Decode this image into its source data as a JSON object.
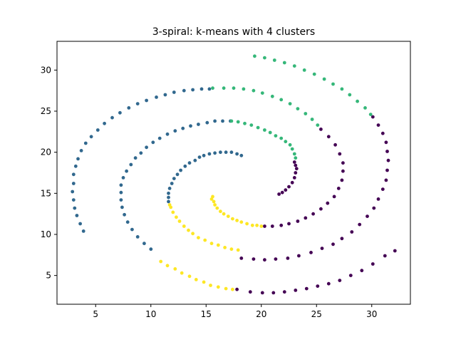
{
  "chart_data": {
    "type": "scatter",
    "title": "3-spiral: k-means with 4 clusters",
    "xlabel": "",
    "ylabel": "",
    "xlim": [
      1.5,
      33.5
    ],
    "ylim": [
      1.5,
      33.5
    ],
    "xticks": [
      5,
      10,
      15,
      20,
      25,
      30
    ],
    "yticks": [
      5,
      10,
      15,
      20,
      25,
      30
    ],
    "grid": false,
    "series": [
      {
        "color": "#440154",
        "points": [
          [
            21.6,
            14.9
          ],
          [
            21.9,
            15.1
          ],
          [
            22.2,
            15.4
          ],
          [
            22.5,
            15.8
          ],
          [
            22.8,
            16.3
          ],
          [
            23.0,
            16.9
          ],
          [
            23.1,
            17.5
          ],
          [
            23.2,
            18.0
          ],
          [
            23.1,
            18.4
          ],
          [
            23.0,
            18.8
          ],
          [
            20.3,
            11.0
          ],
          [
            21.0,
            11.0
          ],
          [
            21.8,
            11.1
          ],
          [
            22.5,
            11.3
          ],
          [
            23.3,
            11.6
          ],
          [
            24.0,
            12.0
          ],
          [
            24.7,
            12.5
          ],
          [
            25.4,
            13.1
          ],
          [
            26.0,
            13.8
          ],
          [
            26.6,
            14.6
          ],
          [
            27.0,
            15.6
          ],
          [
            27.3,
            16.6
          ],
          [
            27.4,
            17.7
          ],
          [
            27.4,
            18.7
          ],
          [
            27.1,
            19.8
          ],
          [
            26.7,
            20.9
          ],
          [
            26.1,
            21.9
          ],
          [
            25.4,
            22.8
          ],
          [
            18.2,
            7.1
          ],
          [
            19.3,
            7.0
          ],
          [
            20.3,
            6.9
          ],
          [
            21.3,
            7.0
          ],
          [
            22.4,
            7.1
          ],
          [
            23.4,
            7.4
          ],
          [
            24.5,
            7.8
          ],
          [
            25.5,
            8.3
          ],
          [
            26.5,
            8.8
          ],
          [
            27.3,
            9.5
          ],
          [
            28.2,
            10.3
          ],
          [
            28.9,
            11.2
          ],
          [
            29.6,
            12.2
          ],
          [
            30.2,
            13.2
          ],
          [
            30.6,
            14.3
          ],
          [
            31.0,
            15.5
          ],
          [
            31.3,
            16.6
          ],
          [
            31.4,
            17.8
          ],
          [
            31.5,
            19.0
          ],
          [
            31.4,
            20.1
          ],
          [
            31.3,
            21.2
          ],
          [
            31.0,
            22.3
          ],
          [
            30.6,
            23.3
          ],
          [
            30.1,
            24.3
          ],
          [
            17.8,
            3.3
          ],
          [
            19.0,
            3.0
          ],
          [
            20.1,
            2.9
          ],
          [
            21.1,
            2.9
          ],
          [
            22.1,
            3.0
          ],
          [
            23.1,
            3.2
          ],
          [
            24.1,
            3.4
          ],
          [
            25.1,
            3.7
          ],
          [
            26.1,
            4.0
          ],
          [
            27.1,
            4.4
          ],
          [
            28.1,
            5.0
          ],
          [
            29.1,
            5.6
          ],
          [
            30.1,
            6.4
          ],
          [
            31.2,
            7.4
          ],
          [
            32.1,
            8.0
          ]
        ]
      },
      {
        "color": "#31688e",
        "points": [
          [
            18.2,
            19.6
          ],
          [
            17.8,
            19.8
          ],
          [
            17.3,
            20.0
          ],
          [
            16.8,
            20.0
          ],
          [
            16.3,
            20.0
          ],
          [
            15.8,
            19.9
          ],
          [
            15.3,
            19.8
          ],
          [
            14.8,
            19.6
          ],
          [
            14.4,
            19.4
          ],
          [
            14.0,
            19.0
          ],
          [
            13.5,
            18.7
          ],
          [
            13.1,
            18.3
          ],
          [
            12.7,
            17.8
          ],
          [
            12.4,
            17.3
          ],
          [
            12.1,
            16.8
          ],
          [
            11.9,
            16.2
          ],
          [
            11.7,
            15.6
          ],
          [
            11.6,
            15.0
          ],
          [
            11.6,
            14.5
          ],
          [
            11.6,
            14.0
          ],
          [
            17.2,
            23.8
          ],
          [
            16.5,
            23.8
          ],
          [
            15.8,
            23.8
          ],
          [
            15.1,
            23.6
          ],
          [
            14.3,
            23.4
          ],
          [
            13.6,
            23.2
          ],
          [
            12.9,
            22.9
          ],
          [
            12.2,
            22.6
          ],
          [
            11.5,
            22.2
          ],
          [
            10.8,
            21.7
          ],
          [
            10.2,
            21.2
          ],
          [
            9.6,
            20.6
          ],
          [
            9.1,
            19.9
          ],
          [
            8.6,
            19.3
          ],
          [
            8.2,
            18.5
          ],
          [
            7.8,
            17.7
          ],
          [
            7.5,
            16.9
          ],
          [
            7.3,
            16.0
          ],
          [
            7.3,
            15.1
          ],
          [
            7.3,
            14.2
          ],
          [
            7.4,
            13.3
          ],
          [
            7.6,
            12.4
          ],
          [
            7.9,
            11.5
          ],
          [
            8.3,
            10.6
          ],
          [
            8.8,
            9.7
          ],
          [
            9.4,
            8.9
          ],
          [
            10.0,
            8.2
          ],
          [
            15.3,
            27.7
          ],
          [
            14.6,
            27.7
          ],
          [
            13.8,
            27.6
          ],
          [
            13.0,
            27.5
          ],
          [
            12.1,
            27.3
          ],
          [
            11.3,
            27.0
          ],
          [
            10.5,
            26.7
          ],
          [
            9.6,
            26.3
          ],
          [
            8.8,
            25.9
          ],
          [
            8.0,
            25.4
          ],
          [
            7.2,
            24.8
          ],
          [
            6.5,
            24.2
          ],
          [
            5.8,
            23.5
          ],
          [
            5.2,
            22.7
          ],
          [
            4.6,
            21.9
          ],
          [
            4.1,
            21.1
          ],
          [
            3.7,
            20.2
          ],
          [
            3.4,
            19.2
          ],
          [
            3.2,
            18.3
          ],
          [
            3.0,
            17.3
          ],
          [
            3.0,
            16.2
          ],
          [
            2.9,
            15.2
          ],
          [
            3.0,
            14.2
          ],
          [
            3.1,
            13.2
          ],
          [
            3.3,
            12.3
          ],
          [
            3.6,
            11.3
          ],
          [
            3.9,
            10.4
          ]
        ]
      },
      {
        "color": "#35b779",
        "points": [
          [
            19.4,
            31.7
          ],
          [
            20.3,
            31.5
          ],
          [
            21.2,
            31.2
          ],
          [
            22.1,
            30.9
          ],
          [
            23.0,
            30.5
          ],
          [
            23.9,
            30.0
          ],
          [
            24.8,
            29.5
          ],
          [
            25.7,
            28.9
          ],
          [
            26.5,
            28.3
          ],
          [
            27.3,
            27.7
          ],
          [
            28.0,
            27.0
          ],
          [
            28.7,
            26.2
          ],
          [
            29.4,
            25.4
          ],
          [
            29.9,
            24.6
          ],
          [
            15.6,
            27.8
          ],
          [
            16.6,
            27.8
          ],
          [
            17.5,
            27.8
          ],
          [
            18.4,
            27.7
          ],
          [
            19.3,
            27.5
          ],
          [
            20.1,
            27.2
          ],
          [
            21.0,
            26.8
          ],
          [
            21.8,
            26.4
          ],
          [
            22.6,
            25.9
          ],
          [
            23.3,
            25.3
          ],
          [
            24.0,
            24.7
          ],
          [
            24.6,
            24.0
          ],
          [
            25.1,
            23.3
          ],
          [
            17.3,
            23.8
          ],
          [
            17.9,
            23.7
          ],
          [
            18.5,
            23.5
          ],
          [
            19.1,
            23.3
          ],
          [
            19.7,
            23.0
          ],
          [
            20.3,
            22.7
          ],
          [
            20.8,
            22.4
          ],
          [
            21.3,
            22.0
          ],
          [
            21.8,
            21.7
          ],
          [
            22.2,
            21.3
          ],
          [
            22.6,
            20.9
          ],
          [
            22.8,
            20.4
          ],
          [
            23.0,
            19.8
          ],
          [
            23.1,
            19.3
          ]
        ]
      },
      {
        "color": "#fde725",
        "points": [
          [
            15.6,
            14.6
          ],
          [
            15.7,
            14.0
          ],
          [
            15.8,
            13.6
          ],
          [
            16.0,
            13.2
          ],
          [
            16.3,
            12.8
          ],
          [
            16.6,
            12.5
          ],
          [
            17.0,
            12.2
          ],
          [
            17.4,
            11.9
          ],
          [
            17.8,
            11.7
          ],
          [
            18.2,
            11.5
          ],
          [
            18.7,
            11.3
          ],
          [
            19.2,
            11.1
          ],
          [
            19.6,
            11.1
          ],
          [
            20.0,
            11.0
          ],
          [
            15.5,
            14.3
          ],
          [
            11.8,
            13.3
          ],
          [
            12.0,
            12.7
          ],
          [
            12.3,
            12.1
          ],
          [
            12.6,
            11.6
          ],
          [
            13.0,
            11.0
          ],
          [
            13.4,
            10.5
          ],
          [
            13.8,
            10.1
          ],
          [
            14.3,
            9.6
          ],
          [
            14.9,
            9.3
          ],
          [
            15.5,
            8.9
          ],
          [
            16.1,
            8.7
          ],
          [
            16.7,
            8.4
          ],
          [
            17.3,
            8.2
          ],
          [
            17.9,
            8.1
          ],
          [
            11.7,
            13.6
          ],
          [
            10.9,
            6.7
          ],
          [
            11.5,
            6.2
          ],
          [
            12.2,
            5.8
          ],
          [
            12.8,
            5.3
          ],
          [
            13.5,
            4.9
          ],
          [
            14.1,
            4.5
          ],
          [
            14.8,
            4.2
          ],
          [
            15.4,
            3.8
          ],
          [
            16.1,
            3.6
          ],
          [
            16.8,
            3.4
          ],
          [
            17.4,
            3.3
          ]
        ]
      }
    ]
  }
}
